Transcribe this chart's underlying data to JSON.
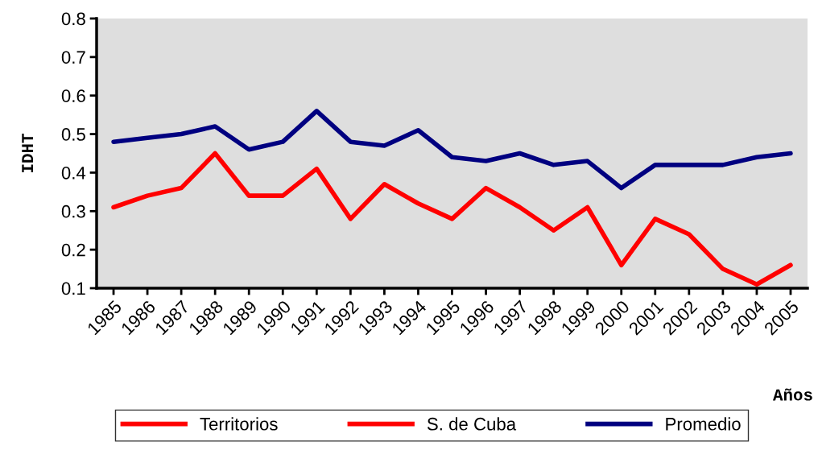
{
  "chart_data": {
    "type": "line",
    "xlabel": "Años",
    "ylabel": "IDHT",
    "categories": [
      "1985",
      "1986",
      "1987",
      "1988",
      "1989",
      "1990",
      "1991",
      "1992",
      "1993",
      "1994",
      "1995",
      "1996",
      "1997",
      "1998",
      "1999",
      "2000",
      "2001",
      "2002",
      "2003",
      "2004",
      "2005"
    ],
    "series": [
      {
        "name": "Territorios",
        "color": "#ff0000",
        "values": [
          null,
          null,
          null,
          null,
          null,
          null,
          null,
          null,
          null,
          null,
          null,
          null,
          null,
          null,
          null,
          null,
          null,
          null,
          null,
          null,
          null
        ]
      },
      {
        "name": "S. de Cuba",
        "color": "#ff0000",
        "values": [
          0.31,
          0.34,
          0.36,
          0.45,
          0.34,
          0.34,
          0.41,
          0.28,
          0.37,
          0.32,
          0.28,
          0.36,
          0.31,
          0.25,
          0.31,
          0.16,
          0.28,
          0.24,
          0.15,
          0.11,
          0.16
        ]
      },
      {
        "name": "Promedio",
        "color": "#000080",
        "values": [
          0.48,
          0.49,
          0.5,
          0.52,
          0.46,
          0.48,
          0.56,
          0.48,
          0.47,
          0.51,
          0.44,
          0.43,
          0.45,
          0.42,
          0.43,
          0.36,
          0.42,
          0.42,
          0.42,
          0.44,
          0.45
        ]
      }
    ],
    "ylim": [
      0.1,
      0.8
    ],
    "yticks": [
      0.1,
      0.2,
      0.3,
      0.4,
      0.5,
      0.6,
      0.7,
      0.8
    ],
    "grid": false,
    "legend": "bottom",
    "marker": "none",
    "line_style": "solid"
  }
}
